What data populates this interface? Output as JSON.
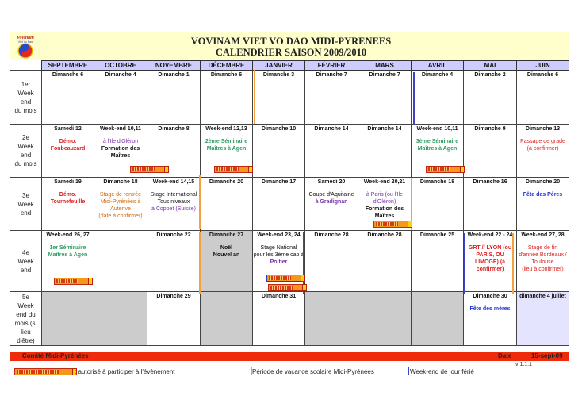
{
  "header": {
    "logo_text": "Vovinam",
    "logo_sub": "Viet Vo Dao",
    "title_line1": "VOVINAM VIET VO DAO MIDI-PYRENEES",
    "title_line2": "CALENDRIER SAISON 2009/2010"
  },
  "months": [
    "SEPTEMBRE",
    "OCTOBRE",
    "NOVEMBRE",
    "DÉCEMBRE",
    "JANVIER",
    "FÉVRIER",
    "MARS",
    "AVRIL",
    "MAI",
    "JUIN"
  ],
  "rows": [
    {
      "label": [
        "1er",
        "Week",
        "end",
        "du mois"
      ],
      "cells": [
        {
          "date": "Dimanche 6"
        },
        {
          "date": "Dimanche 4"
        },
        {
          "date": "Dimanche 1"
        },
        {
          "date": "Dimanche 6"
        },
        {
          "date": "Dimanche 3"
        },
        {
          "date": "Dimanche 7"
        },
        {
          "date": "Dimanche 7"
        },
        {
          "date": "Dimanche 4"
        },
        {
          "date": "Dimanche 2"
        },
        {
          "date": "Dimanche 6"
        }
      ]
    },
    {
      "label": [
        "2e",
        "Week",
        "end",
        "du mois"
      ],
      "cells": [
        {
          "date": "Samedi 12",
          "lines": [
            {
              "t": "Démo.",
              "c": "rd b"
            },
            {
              "t": "Fonbeauzard",
              "c": "rd b"
            }
          ]
        },
        {
          "date": "Week-end 10,11",
          "lines": [
            {
              "t": "à l'Ile d'Oléron",
              "c": "pu"
            },
            {
              "t": "Formation des",
              "c": "dk b"
            },
            {
              "t": "Maîtres",
              "c": "dk b"
            }
          ]
        },
        {
          "date": "Dimanche 8"
        },
        {
          "date": "Week-end 12,13",
          "lines": [
            {
              "t": "2ème Séminaire",
              "c": "gr b"
            },
            {
              "t": "Maîtres à Agen",
              "c": "gr b"
            }
          ]
        },
        {
          "date": "Dimanche 10"
        },
        {
          "date": "Dimanche 14"
        },
        {
          "date": "Dimanche 14"
        },
        {
          "date": "Week-end 10,11",
          "lines": [
            {
              "t": "3ème Séminaire",
              "c": "gr b"
            },
            {
              "t": "Maîtres à Agen",
              "c": "gr b"
            }
          ]
        },
        {
          "date": "Dimanche 9"
        },
        {
          "date": "Dimanche 13",
          "lines": [
            {
              "t": "Passage de grade",
              "c": "rd"
            },
            {
              "t": "(à confirmer)",
              "c": "rd"
            }
          ]
        }
      ]
    },
    {
      "label": [
        "3e",
        "Week",
        "end"
      ],
      "cells": [
        {
          "date": "Samedi 19",
          "lines": [
            {
              "t": "Démo.",
              "c": "rd b"
            },
            {
              "t": "Tournefeuille",
              "c": "rd b"
            }
          ]
        },
        {
          "date": "Dimanche 18",
          "lines": [
            {
              "t": "Stage de rentrée",
              "c": "or"
            },
            {
              "t": "Midi-Pyrénées à",
              "c": "or"
            },
            {
              "t": "Auterive",
              "c": "or"
            },
            {
              "t": "(date à confirmer)",
              "c": "or"
            }
          ]
        },
        {
          "date": "Week-end 14,15",
          "lines": [
            {
              "t": "Stage International",
              "c": "dk"
            },
            {
              "t": "Tous niveaux",
              "c": "dk"
            },
            {
              "t": "à Coppet (Suisse)",
              "c": "pu"
            }
          ]
        },
        {
          "date": "Dimanche 20"
        },
        {
          "date": "Dimanche 17"
        },
        {
          "date": "Samedi 20",
          "lines": [
            {
              "t": "Coupe d'Aquitaine",
              "c": "dk"
            },
            {
              "t": "à Gradignan",
              "c": "pu b"
            }
          ]
        },
        {
          "date": "Week-end 20,21",
          "lines": [
            {
              "t": "à Paris (ou l'Ile",
              "c": "pu"
            },
            {
              "t": "d'Oléron)",
              "c": "pu"
            },
            {
              "t": "Formation des",
              "c": "dk b"
            },
            {
              "t": "Maîtres",
              "c": "dk b"
            }
          ]
        },
        {
          "date": "Dimanche 18"
        },
        {
          "date": "Dimanche 16"
        },
        {
          "date": "Dimanche 20",
          "lines": [
            {
              "t": "Fête des Pères",
              "c": "bl b"
            }
          ]
        }
      ]
    },
    {
      "label": [
        "4e",
        "Week",
        "end"
      ],
      "cells": [
        {
          "date": "Week-end 26, 27",
          "lines": [
            {
              "t": "1er Séminaire",
              "c": "gr b"
            },
            {
              "t": "Maîtres à Agen",
              "c": "gr b"
            }
          ]
        },
        {
          "date": ""
        },
        {
          "date": "Dimanche 22"
        },
        {
          "date": "Dimanche 27",
          "lines": [
            {
              "t": "Noël",
              "c": "dk b"
            },
            {
              "t": "Nouvel an",
              "c": "dk b"
            }
          ]
        },
        {
          "date": "Week-end 23, 24",
          "lines": [
            {
              "t": "Stage National",
              "c": "dk"
            },
            {
              "t": "pour les 3ème cap à",
              "c": "dk"
            },
            {
              "t": "Poitier",
              "c": "pu b"
            }
          ]
        },
        {
          "date": "Dimanche 28"
        },
        {
          "date": "Dimanche 28"
        },
        {
          "date": "Dimanche 25"
        },
        {
          "date": "Week-end 22 - 24",
          "lines": [
            {
              "t": "GRT // LYON (ou",
              "c": "rd b"
            },
            {
              "t": "PARIS, OU",
              "c": "rd b"
            },
            {
              "t": "LIMOGE) (à",
              "c": "rd b"
            },
            {
              "t": "confirmer)",
              "c": "rd b"
            }
          ]
        },
        {
          "date": "Week-end 27, 28",
          "lines": [
            {
              "t": "Stage de fin",
              "c": "rd"
            },
            {
              "t": "d'année Bordeaux /",
              "c": "rd"
            },
            {
              "t": "Toulouse",
              "c": "rd"
            },
            {
              "t": "(lieu à confirmer)",
              "c": "rd"
            }
          ]
        }
      ]
    },
    {
      "label": [
        "5e",
        "Week",
        "end du",
        "mois (si",
        "lieu",
        "d'être)"
      ],
      "cells": [
        {
          "date": ""
        },
        {
          "date": ""
        },
        {
          "date": "Dimanche 29"
        },
        {
          "date": ""
        },
        {
          "date": "Dimanche 31"
        },
        {
          "date": ""
        },
        {
          "date": ""
        },
        {
          "date": ""
        },
        {
          "date": "Dimanche 30",
          "lines": [
            {
              "t": "Fête des mères",
              "c": "bl b"
            }
          ]
        },
        {
          "date": "dimanche 4 juillet"
        }
      ]
    }
  ],
  "footer": {
    "committee": "Comité Midi-Pyrénées",
    "date_label": "Date",
    "date_value": "15-sept-09",
    "version": "v 1.1.1"
  },
  "legend": {
    "authorized": ": autorisé à participer à l'évènement",
    "vacation": "Période de vacance scolaire Midi-Pyrénées",
    "holiday": "Week-end de jour férié"
  },
  "colors": {
    "header_bg": "#ffffcc",
    "month_bg": "#ccccff",
    "grey_cell": "#cccccc",
    "footer_red": "#ee2b0b",
    "vacation_orange": "#f3a23f",
    "holiday_blue": "#4141c3"
  }
}
